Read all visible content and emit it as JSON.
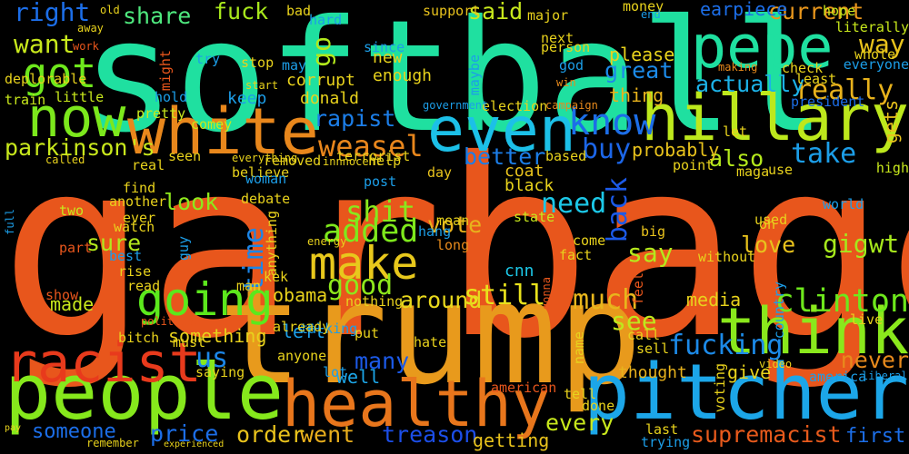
{
  "words": [
    {
      "text": "garbage",
      "color": "#e8561c"
    },
    {
      "text": "softball",
      "color": "#1fe0a0"
    },
    {
      "text": "trump",
      "color": "#e89a1c"
    },
    {
      "text": "pitcher",
      "color": "#1ca6e8"
    },
    {
      "text": "people",
      "color": "#86e81c"
    },
    {
      "text": "hillary",
      "color": "#bde81c"
    },
    {
      "text": "healthy",
      "color": "#e8761c"
    },
    {
      "text": "white",
      "color": "#e8871c"
    },
    {
      "text": "pepe",
      "color": "#1fe0a0"
    },
    {
      "text": "even",
      "color": "#1cc0e8"
    },
    {
      "text": "now",
      "color": "#7ce81c"
    },
    {
      "text": "think",
      "color": "#8ae81c"
    },
    {
      "text": "racist",
      "color": "#e83a1c"
    },
    {
      "text": "going",
      "color": "#5ce81c"
    },
    {
      "text": "make",
      "color": "#e8c81c"
    },
    {
      "text": "know",
      "color": "#1c6ee8"
    },
    {
      "text": "got",
      "color": "#6ee81c"
    },
    {
      "text": "clinton",
      "color": "#6ee81c"
    },
    {
      "text": "fucking",
      "color": "#1c8ae8"
    },
    {
      "text": "supremacist",
      "color": "#e85a1c"
    },
    {
      "text": "treason",
      "color": "#1c4ee8"
    },
    {
      "text": "went",
      "color": "#e8ae1c"
    },
    {
      "text": "order",
      "color": "#e8c21c"
    },
    {
      "text": "still",
      "color": "#e8e21c"
    },
    {
      "text": "around",
      "color": "#e8d81c"
    },
    {
      "text": "weasel",
      "color": "#e8861c"
    },
    {
      "text": "rapist",
      "color": "#1c7ee8"
    },
    {
      "text": "parkinson's",
      "color": "#c8e81c"
    },
    {
      "text": "shit",
      "color": "#8ae81c"
    },
    {
      "text": "added",
      "color": "#7ee81c"
    },
    {
      "text": "much",
      "color": "#e8b61c"
    },
    {
      "text": "really",
      "color": "#e8b21c"
    },
    {
      "text": "every",
      "color": "#c8e81c"
    },
    {
      "text": "gigwt",
      "color": "#a6e81c"
    },
    {
      "text": "also",
      "color": "#b4e81c"
    },
    {
      "text": "take",
      "color": "#1c9ee8"
    },
    {
      "text": "buy",
      "color": "#1c66e8"
    },
    {
      "text": "better",
      "color": "#1c7ee8"
    },
    {
      "text": "need",
      "color": "#1cc8e8"
    },
    {
      "text": "vote",
      "color": "#e8b21c"
    },
    {
      "text": "good",
      "color": "#8ee81c"
    },
    {
      "text": "time",
      "color": "#1c86e8"
    },
    {
      "text": "say",
      "color": "#b6e81c"
    },
    {
      "text": "love",
      "color": "#e8c21c"
    },
    {
      "text": "never",
      "color": "#e88a1c"
    },
    {
      "text": "see",
      "color": "#bfe81c"
    },
    {
      "text": "many",
      "color": "#1c5ae8"
    },
    {
      "text": "us",
      "color": "#1c86e8"
    },
    {
      "text": "price",
      "color": "#1c6ee8"
    },
    {
      "text": "someone",
      "color": "#1c6ee8"
    },
    {
      "text": "sure",
      "color": "#b2e81c"
    },
    {
      "text": "look",
      "color": "#8ee81c"
    },
    {
      "text": "media",
      "color": "#e8d21c"
    },
    {
      "text": "back",
      "color": "#1c5ae8"
    },
    {
      "text": "great",
      "color": "#1c8ae8"
    },
    {
      "text": "actually",
      "color": "#1cb2e8"
    },
    {
      "text": "thing",
      "color": "#e8b21c"
    },
    {
      "text": "current",
      "color": "#e8961c"
    },
    {
      "text": "earpiece",
      "color": "#1c6ee8"
    },
    {
      "text": "way",
      "color": "#e8c21c"
    },
    {
      "text": "said",
      "color": "#c8e81c"
    },
    {
      "text": "share",
      "color": "#4ee87e"
    },
    {
      "text": "fuck",
      "color": "#a8e81c"
    },
    {
      "text": "right",
      "color": "#1c6ee8"
    },
    {
      "text": "want",
      "color": "#c8e81c"
    },
    {
      "text": "go",
      "color": "#b2e81c"
    },
    {
      "text": "gets",
      "color": "#e8c21c"
    },
    {
      "text": "probably",
      "color": "#e8c21c"
    },
    {
      "text": "left",
      "color": "#1c9ee8"
    },
    {
      "text": "well",
      "color": "#1ca6e8"
    },
    {
      "text": "something",
      "color": "#e8d21c"
    },
    {
      "text": "first",
      "color": "#1c6ee8"
    },
    {
      "text": "getting",
      "color": "#e8c21c"
    },
    {
      "text": "made",
      "color": "#c8e81c"
    },
    {
      "text": "obama",
      "color": "#e8d21c"
    },
    {
      "text": "cnn",
      "color": "#1cc8e8"
    },
    {
      "text": "hate",
      "color": "#e8d21c"
    },
    {
      "text": "give",
      "color": "#e8d21c"
    },
    {
      "text": "thought",
      "color": "#e8b21c"
    },
    {
      "text": "please",
      "color": "#e8d21c"
    },
    {
      "text": "coat",
      "color": "#e8c21c"
    },
    {
      "text": "black",
      "color": "#e8d21c"
    },
    {
      "text": "terrorist",
      "color": "#e8d21c"
    },
    {
      "text": "new",
      "color": "#e8d21c"
    },
    {
      "text": "enough",
      "color": "#e8d21c"
    },
    {
      "text": "corrupt",
      "color": "#e8d21c"
    },
    {
      "text": "donald",
      "color": "#e8d21c"
    },
    {
      "text": "keep",
      "color": "#1c9ee8"
    },
    {
      "text": "comey",
      "color": "#c8e81c"
    },
    {
      "text": "little",
      "color": "#c8e81c"
    },
    {
      "text": "train",
      "color": "#c8e81c"
    },
    {
      "text": "pretty",
      "color": "#c8e81c"
    },
    {
      "text": "hold",
      "color": "#1c9ee8"
    },
    {
      "text": "election",
      "color": "#e8d21c"
    },
    {
      "text": "based",
      "color": "#e8d21c"
    },
    {
      "text": "day",
      "color": "#e8c21c"
    },
    {
      "text": "mean",
      "color": "#e8d21c"
    },
    {
      "text": "hang",
      "color": "#1c9ee8"
    },
    {
      "text": "state",
      "color": "#c8e81c"
    },
    {
      "text": "long",
      "color": "#e88a1c"
    },
    {
      "text": "come",
      "color": "#e8d21c"
    },
    {
      "text": "fact",
      "color": "#e8d21c"
    },
    {
      "text": "big",
      "color": "#e8c21c"
    },
    {
      "text": "point",
      "color": "#e8d21c"
    },
    {
      "text": "let",
      "color": "#e8d21c"
    },
    {
      "text": "use",
      "color": "#e8d21c"
    },
    {
      "text": "high",
      "color": "#c8e81c"
    },
    {
      "text": "oh",
      "color": "#e8d21c"
    },
    {
      "text": "used",
      "color": "#e8d21c"
    },
    {
      "text": "world",
      "color": "#1c9ee8"
    },
    {
      "text": "without",
      "color": "#e8d21c"
    },
    {
      "text": "maga",
      "color": "#e8d21c"
    },
    {
      "text": "check",
      "color": "#e8d21c"
    },
    {
      "text": "least",
      "color": "#e8d21c"
    },
    {
      "text": "whole",
      "color": "#e8d21c"
    },
    {
      "text": "literally",
      "color": "#c8e81c"
    },
    {
      "text": "everyone",
      "color": "#1c9ee8"
    },
    {
      "text": "president",
      "color": "#1c6ee8"
    },
    {
      "text": "making",
      "color": "#e88a1c"
    },
    {
      "text": "money",
      "color": "#e8d21c"
    },
    {
      "text": "end",
      "color": "#1c9ee8"
    },
    {
      "text": "hope",
      "color": "#c8e81c"
    },
    {
      "text": "support",
      "color": "#e8c21c"
    },
    {
      "text": "major",
      "color": "#e8d21c"
    },
    {
      "text": "next",
      "color": "#e8d21c"
    },
    {
      "text": "person",
      "color": "#e8d21c"
    },
    {
      "text": "god",
      "color": "#1c9ee8"
    },
    {
      "text": "win",
      "color": "#e88a1c"
    },
    {
      "text": "campaign",
      "color": "#e88a1c"
    },
    {
      "text": "maybe",
      "color": "#1c9ee8"
    },
    {
      "text": "government",
      "color": "#1c9ee8"
    },
    {
      "text": "since",
      "color": "#1c9ee8"
    },
    {
      "text": "hard",
      "color": "#1c9ee8"
    },
    {
      "text": "bad",
      "color": "#e8d21c"
    },
    {
      "text": "old",
      "color": "#e8d21c"
    },
    {
      "text": "away",
      "color": "#e8d21c"
    },
    {
      "text": "work",
      "color": "#e8561c"
    },
    {
      "text": "deplorable",
      "color": "#e8d21c"
    },
    {
      "text": "might",
      "color": "#e8561c"
    },
    {
      "text": "try",
      "color": "#1c9ee8"
    },
    {
      "text": "stop",
      "color": "#e8d21c"
    },
    {
      "text": "start",
      "color": "#e8d21c"
    },
    {
      "text": "may",
      "color": "#1c9ee8"
    },
    {
      "text": "everything",
      "color": "#e8d21c"
    },
    {
      "text": "innnocent",
      "color": "#e8d21c"
    },
    {
      "text": "seen",
      "color": "#e8d21c"
    },
    {
      "text": "real",
      "color": "#e8d21c"
    },
    {
      "text": "called",
      "color": "#e8d21c"
    },
    {
      "text": "removed",
      "color": "#e8d21c"
    },
    {
      "text": "believe",
      "color": "#e8d21c"
    },
    {
      "text": "help",
      "color": "#e8d21c"
    },
    {
      "text": "post",
      "color": "#1c9ee8"
    },
    {
      "text": "woman",
      "color": "#1c9ee8"
    },
    {
      "text": "debate",
      "color": "#e8d21c"
    },
    {
      "text": "find",
      "color": "#e8d21c"
    },
    {
      "text": "another",
      "color": "#e8d21c"
    },
    {
      "text": "ever",
      "color": "#e8d21c"
    },
    {
      "text": "watch",
      "color": "#e8d21c"
    },
    {
      "text": "two",
      "color": "#c8e81c"
    },
    {
      "text": "full",
      "color": "#1c9ee8"
    },
    {
      "text": "part",
      "color": "#e8561c"
    },
    {
      "text": "best",
      "color": "#1c9ee8"
    },
    {
      "text": "rise",
      "color": "#e8d21c"
    },
    {
      "text": "read",
      "color": "#e8d21c"
    },
    {
      "text": "show",
      "color": "#e8561c"
    },
    {
      "text": "political",
      "color": "#e8561c"
    },
    {
      "text": "bitch",
      "color": "#e8d21c"
    },
    {
      "text": "must",
      "color": "#e8d21c"
    },
    {
      "text": "saying",
      "color": "#e8d21c"
    },
    {
      "text": "guy",
      "color": "#1c9ee8"
    },
    {
      "text": "anything",
      "color": "#e8d21c"
    },
    {
      "text": "energy",
      "color": "#e8d21c"
    },
    {
      "text": "kek",
      "color": "#e8d21c"
    },
    {
      "text": "man",
      "color": "#e8d21c"
    },
    {
      "text": "talking",
      "color": "#1c9ee8"
    },
    {
      "text": "nothing",
      "color": "#e8d21c"
    },
    {
      "text": "already",
      "color": "#e8d21c"
    },
    {
      "text": "put",
      "color": "#e8d21c"
    },
    {
      "text": "anyone",
      "color": "#e8d21c"
    },
    {
      "text": "lot",
      "color": "#1c9ee8"
    },
    {
      "text": "american",
      "color": "#e8561c"
    },
    {
      "text": "tell",
      "color": "#e8d21c"
    },
    {
      "text": "done",
      "color": "#e8d21c"
    },
    {
      "text": "name",
      "color": "#e8d21c"
    },
    {
      "text": "call",
      "color": "#e8d21c"
    },
    {
      "text": "sell",
      "color": "#e8d21c"
    },
    {
      "text": "gonna",
      "color": "#e8561c"
    },
    {
      "text": "lol",
      "color": "#e8561c"
    },
    {
      "text": "feel",
      "color": "#e8561c"
    },
    {
      "text": "last",
      "color": "#e8d21c"
    },
    {
      "text": "trying",
      "color": "#1c9ee8"
    },
    {
      "text": "voting",
      "color": "#e8d21c"
    },
    {
      "text": "video",
      "color": "#e8d21c"
    },
    {
      "text": "america",
      "color": "#1c9ee8"
    },
    {
      "text": "liberal",
      "color": "#1c9ee8"
    },
    {
      "text": "live",
      "color": "#e8d21c"
    },
    {
      "text": "country",
      "color": "#1c9ee8"
    },
    {
      "text": "remember",
      "color": "#e8d21c"
    },
    {
      "text": "pay",
      "color": "#e8d21c"
    },
    {
      "text": "experienced",
      "color": "#e8d21c"
    }
  ]
}
